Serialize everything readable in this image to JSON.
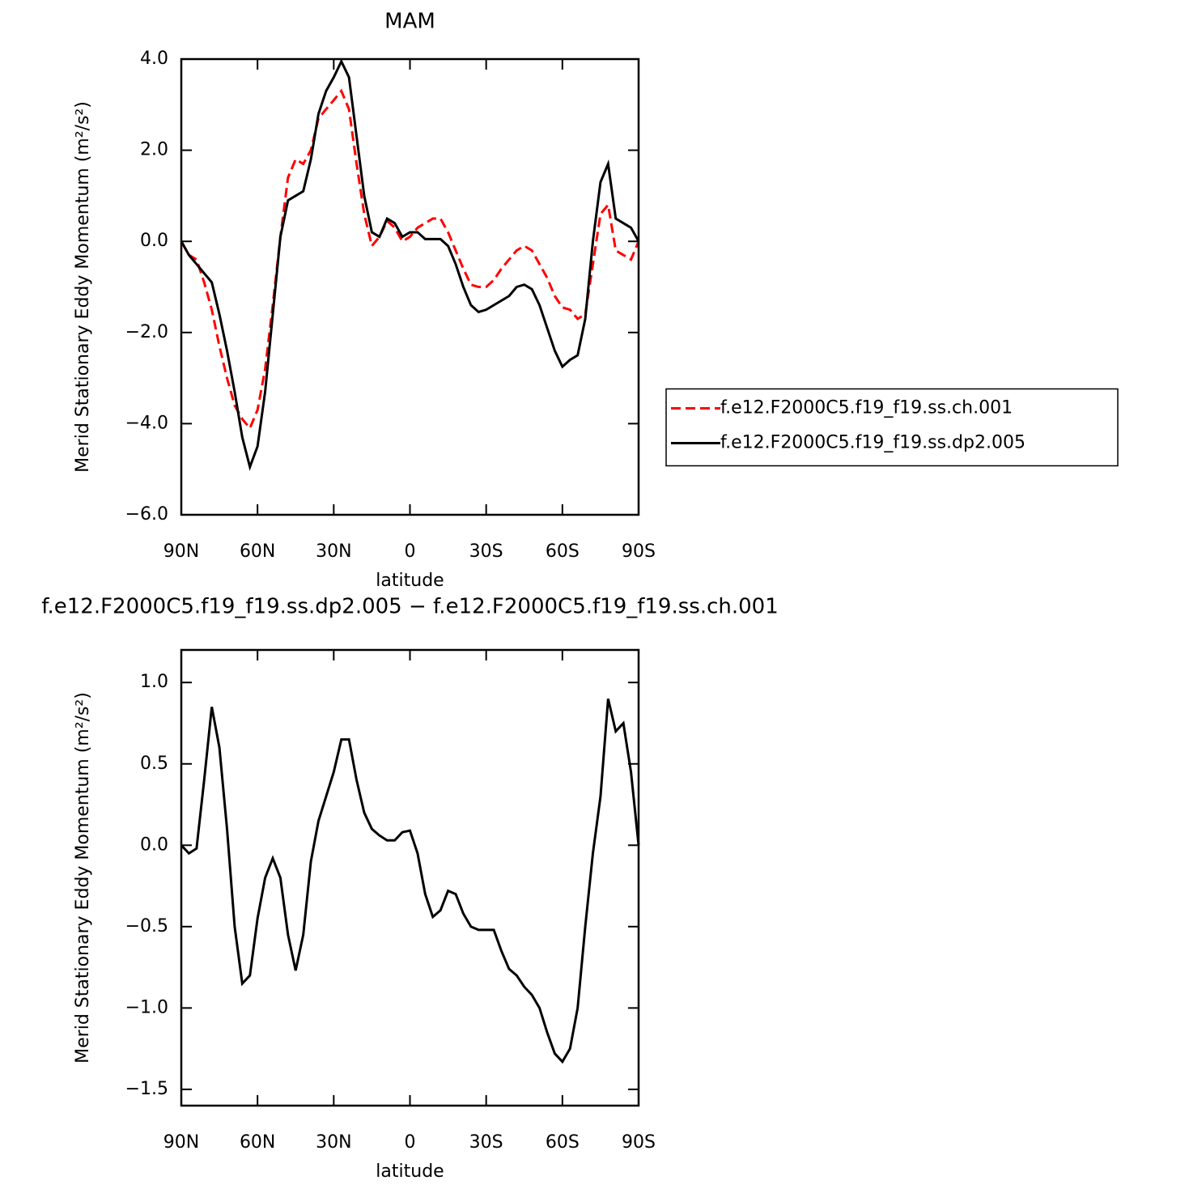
{
  "chart_data": [
    {
      "type": "line",
      "title": "MAM",
      "xlabel": "latitude",
      "ylabel": "Merid Stationary Eddy Momentum (m²/s²)",
      "x": [
        90,
        87,
        84,
        81,
        78,
        75,
        72,
        69,
        66,
        63,
        60,
        57,
        54,
        51,
        48,
        45,
        42,
        39,
        36,
        33,
        30,
        27,
        24,
        21,
        18,
        15,
        12,
        9,
        6,
        3,
        0,
        -3,
        -6,
        -9,
        -12,
        -15,
        -18,
        -21,
        -24,
        -27,
        -30,
        -33,
        -36,
        -39,
        -42,
        -45,
        -48,
        -51,
        -54,
        -57,
        -60,
        -63,
        -66,
        -69,
        -72,
        -75,
        -78,
        -81,
        -84,
        -87,
        -90
      ],
      "series": [
        {
          "name": "f.e12.F2000C5.f19_f19.ss.ch.001",
          "color": "#ff0000",
          "linestyle": "dashed",
          "values": [
            0,
            -0.3,
            -0.4,
            -0.9,
            -1.5,
            -2.3,
            -3.0,
            -3.6,
            -3.9,
            -4.1,
            -3.7,
            -2.8,
            -1.4,
            0.1,
            1.4,
            1.8,
            1.7,
            2.0,
            2.7,
            2.9,
            3.1,
            3.3,
            2.9,
            1.7,
            0.6,
            -0.1,
            0.1,
            0.45,
            0.3,
            0.0,
            0.1,
            0.3,
            0.4,
            0.5,
            0.5,
            0.2,
            -0.2,
            -0.6,
            -0.95,
            -1.0,
            -1.0,
            -0.85,
            -0.6,
            -0.4,
            -0.2,
            -0.1,
            -0.2,
            -0.5,
            -0.8,
            -1.2,
            -1.45,
            -1.5,
            -1.7,
            -1.6,
            -0.5,
            0.6,
            0.8,
            -0.2,
            -0.3,
            -0.4,
            0.0
          ]
        },
        {
          "name": "f.e12.F2000C5.f19_f19.ss.dp2.005",
          "color": "#000000",
          "linestyle": "solid",
          "values": [
            0,
            -0.3,
            -0.5,
            -0.7,
            -0.9,
            -1.6,
            -2.4,
            -3.3,
            -4.3,
            -4.95,
            -4.5,
            -3.3,
            -1.6,
            0.1,
            0.9,
            1.0,
            1.1,
            1.8,
            2.8,
            3.3,
            3.6,
            3.95,
            3.6,
            2.3,
            1.0,
            0.2,
            0.1,
            0.5,
            0.4,
            0.1,
            0.2,
            0.2,
            0.05,
            0.05,
            0.05,
            -0.1,
            -0.5,
            -1.0,
            -1.4,
            -1.55,
            -1.5,
            -1.4,
            -1.3,
            -1.2,
            -1.0,
            -0.95,
            -1.05,
            -1.4,
            -1.9,
            -2.4,
            -2.75,
            -2.6,
            -2.5,
            -1.7,
            0.0,
            1.3,
            1.7,
            0.5,
            0.4,
            0.3,
            0.0
          ]
        }
      ],
      "xlim": [
        90,
        -90
      ],
      "ylim": [
        -6,
        4
      ],
      "xticks": [
        {
          "value": 90,
          "label": "90N"
        },
        {
          "value": 60,
          "label": "60N"
        },
        {
          "value": 30,
          "label": "30N"
        },
        0,
        {
          "value": -30,
          "label": "30S"
        },
        {
          "value": -60,
          "label": "60S"
        },
        {
          "value": -90,
          "label": "90S"
        }
      ],
      "yticks": [
        {
          "value": -6,
          "label": "−6.0"
        },
        {
          "value": -4,
          "label": "−4.0"
        },
        {
          "value": -2,
          "label": "−2.0"
        },
        {
          "value": 0,
          "label": "0.0"
        },
        {
          "value": 2,
          "label": "2.0"
        },
        {
          "value": 4,
          "label": "4.0"
        }
      ],
      "legend": "right"
    },
    {
      "type": "line",
      "title": "f.e12.F2000C5.f19_f19.ss.dp2.005 − f.e12.F2000C5.f19_f19.ss.ch.001",
      "xlabel": "latitude",
      "ylabel": "Merid Stationary Eddy Momentum (m²/s²)",
      "x": [
        90,
        87,
        84,
        81,
        78,
        75,
        72,
        69,
        66,
        63,
        60,
        57,
        54,
        51,
        48,
        45,
        42,
        39,
        36,
        33,
        30,
        27,
        24,
        21,
        18,
        15,
        12,
        9,
        6,
        3,
        0,
        -3,
        -6,
        -9,
        -12,
        -15,
        -18,
        -21,
        -24,
        -27,
        -30,
        -33,
        -36,
        -39,
        -42,
        -45,
        -48,
        -51,
        -54,
        -57,
        -60,
        -63,
        -66,
        -69,
        -72,
        -75,
        -78,
        -81,
        -84,
        -87,
        -90
      ],
      "series": [
        {
          "color": "#000000",
          "linestyle": "solid",
          "values": [
            0.0,
            -0.05,
            -0.02,
            0.4,
            0.85,
            0.6,
            0.1,
            -0.5,
            -0.85,
            -0.8,
            -0.45,
            -0.2,
            -0.08,
            -0.2,
            -0.55,
            -0.77,
            -0.55,
            -0.1,
            0.15,
            0.3,
            0.45,
            0.65,
            0.65,
            0.4,
            0.2,
            0.1,
            0.06,
            0.03,
            0.03,
            0.08,
            0.09,
            -0.05,
            -0.3,
            -0.44,
            -0.4,
            -0.28,
            -0.3,
            -0.42,
            -0.5,
            -0.52,
            -0.52,
            -0.52,
            -0.65,
            -0.76,
            -0.8,
            -0.87,
            -0.92,
            -1.0,
            -1.15,
            -1.28,
            -1.33,
            -1.25,
            -1.0,
            -0.5,
            -0.05,
            0.3,
            0.9,
            0.7,
            0.75,
            0.45,
            0.0
          ]
        }
      ],
      "xlim": [
        90,
        -90
      ],
      "ylim": [
        -1.6,
        1.2
      ],
      "xticks": [
        {
          "value": 90,
          "label": "90N"
        },
        {
          "value": 60,
          "label": "60N"
        },
        {
          "value": 30,
          "label": "30N"
        },
        0,
        {
          "value": -30,
          "label": "30S"
        },
        {
          "value": -60,
          "label": "60S"
        },
        {
          "value": -90,
          "label": "90S"
        }
      ],
      "yticks": [
        {
          "value": -1.5,
          "label": "−1.5"
        },
        {
          "value": -1.0,
          "label": "−1.0"
        },
        {
          "value": -0.5,
          "label": "−0.5"
        },
        {
          "value": 0,
          "label": "0.0"
        },
        {
          "value": 0.5,
          "label": "0.5"
        },
        {
          "value": 1.0,
          "label": "1.0"
        }
      ]
    }
  ]
}
